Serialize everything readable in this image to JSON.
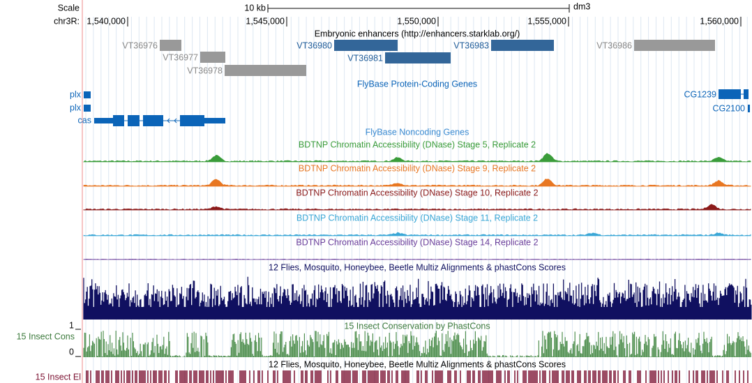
{
  "ruler": {
    "scale": "Scale",
    "span": "10 kb",
    "assembly": "dm3",
    "chrom": "chr3R:",
    "positions": [
      "1,540,000",
      "1,545,000",
      "1,550,000",
      "1,555,000",
      "1,560,000"
    ]
  },
  "enhancers": {
    "title": "Embryonic enhancers (http://enhancers.starklab.org/)",
    "features": [
      "VT36976",
      "VT36977",
      "VT36978",
      "VT36980",
      "VT36981",
      "VT36983",
      "VT36986"
    ]
  },
  "protein_coding": {
    "title": "FlyBase Protein-Coding Genes",
    "genes": [
      "plx",
      "plx",
      "cas",
      "CG1239",
      "CG2100"
    ]
  },
  "noncoding": {
    "title": "FlyBase Noncoding Genes"
  },
  "dnase": {
    "tracks": [
      "BDTNP Chromatin Accessibility (DNase) Stage 5, Replicate 2",
      "BDTNP Chromatin Accessibility (DNase) Stage 9, Replicate 2",
      "BDTNP Chromatin Accessibility (DNase) Stage 10, Replicate 2",
      "BDTNP Chromatin Accessibility (DNase) Stage 11, Replicate 2",
      "BDTNP Chromatin Accessibility (DNase) Stage 14, Replicate 2"
    ]
  },
  "multiz": {
    "title": "12 Flies, Mosquito, Honeybee, Beetle Multiz Alignments & phastCons Scores"
  },
  "phastcons": {
    "title": "15 Insect Conservation by PhastCons",
    "label": "15 Insect Cons",
    "max": "1",
    "min": "0"
  },
  "elements": {
    "title": "12 Flies, Mosquito, Honeybee, Beetle Multiz Alignments & phastCons Scores",
    "label": "15 Insect El"
  }
}
